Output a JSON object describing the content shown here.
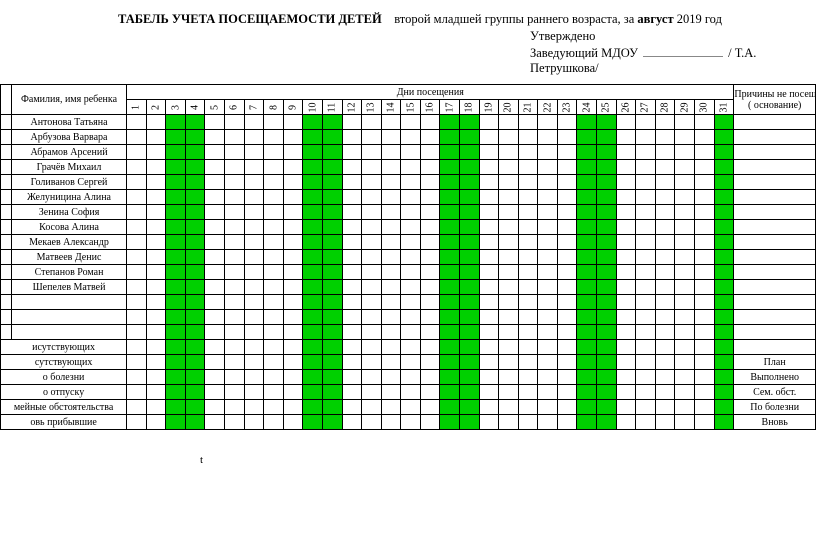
{
  "header": {
    "title_bold": "ТАБЕЛЬ УЧЕТА ПОСЕЩАЕМОСТИ ДЕТЕЙ",
    "title_rest_1": "второй младшей  группы раннего возраста, за ",
    "title_month_bold": "август",
    "title_rest_2": " 2019 год",
    "approved": "Утверждено",
    "approver_label": "Заведующий МДОУ",
    "approver_name": "/ Т.А. Петрушкова/"
  },
  "table": {
    "name_header": "Фамилия, имя ребенка",
    "visits_header": "Дни посещения",
    "reason_header_l1": "Причины не посещения",
    "reason_header_l2": "( основание)",
    "days": [
      "1",
      "2",
      "3",
      "4",
      "5",
      "6",
      "7",
      "8",
      "9",
      "10",
      "11",
      "12",
      "13",
      "14",
      "15",
      "16",
      "17",
      "18",
      "19",
      "20",
      "21",
      "22",
      "23",
      "24",
      "25",
      "26",
      "27",
      "28",
      "29",
      "30",
      "31"
    ],
    "green_days": [
      3,
      4,
      10,
      11,
      17,
      18,
      24,
      25,
      31
    ],
    "students": [
      "Антонова Татьяна",
      "Арбузова Варвара",
      "Абрамов Арсений",
      "Грачёв Михаил",
      "Голиванов Сергей",
      "Желуницина Алина",
      "Зенина София",
      "Косова Алина",
      "Мекаев Александр",
      "Матвеев Денис",
      "Степанов Роман",
      "Шепелев Матвей"
    ],
    "blank_student_rows": 3,
    "summary_rows": [
      {
        "label": "исутствующих",
        "reason": ""
      },
      {
        "label": "сутствующих",
        "reason": "План"
      },
      {
        "label": "о болезни",
        "reason": "Выполнено"
      },
      {
        "label": "о отпуску",
        "reason": "Сем. обст."
      },
      {
        "label": "мейные обстоятельства",
        "reason": "По болезни"
      },
      {
        "label": "овь прибывшие",
        "reason": "Вновь"
      }
    ]
  },
  "footer_mark": "t",
  "style": {
    "green": "#00d000",
    "border": "#000000",
    "background": "#ffffff"
  }
}
